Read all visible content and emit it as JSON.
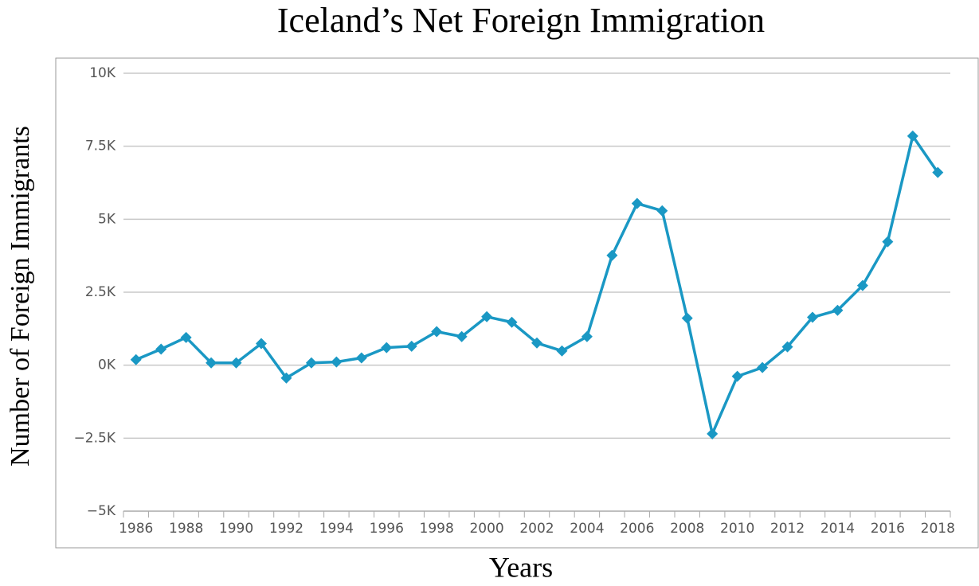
{
  "chart_data": {
    "type": "line",
    "title": "Iceland’s Net Foreign Immigration",
    "x_label": "Years",
    "y_label": "Number of Foreign Immigrants",
    "categories": [
      "1986",
      null,
      "1988",
      null,
      "1990",
      null,
      "1992",
      null,
      "1994",
      null,
      "1996",
      null,
      "1998",
      null,
      "2000",
      null,
      "2002",
      null,
      "2004",
      null,
      "2006",
      null,
      "2008",
      null,
      "2010",
      null,
      "2012",
      null,
      "2014",
      null,
      "2016",
      null,
      "2018"
    ],
    "series": [
      {
        "name": "Net Foreign Immigration",
        "color": "#1a98c4",
        "values": [
          190,
          550,
          950,
          80,
          80,
          740,
          -440,
          80,
          110,
          250,
          600,
          650,
          1150,
          980,
          1660,
          1470,
          760,
          490,
          980,
          3760,
          5540,
          5290,
          1610,
          -2350,
          -380,
          -80,
          630,
          1640,
          1880,
          2730,
          4230,
          7850,
          6600
        ]
      }
    ],
    "ylim": [
      -5000,
      10000
    ],
    "yticks": [
      {
        "value": -5000,
        "label": "−5K"
      },
      {
        "value": -2500,
        "label": "−2.5K"
      },
      {
        "value": 0,
        "label": "0K"
      },
      {
        "value": 2500,
        "label": "2.5K"
      },
      {
        "value": 5000,
        "label": "5K"
      },
      {
        "value": 7500,
        "label": "7.5K"
      },
      {
        "value": 10000,
        "label": "10K"
      }
    ],
    "grid": true
  }
}
